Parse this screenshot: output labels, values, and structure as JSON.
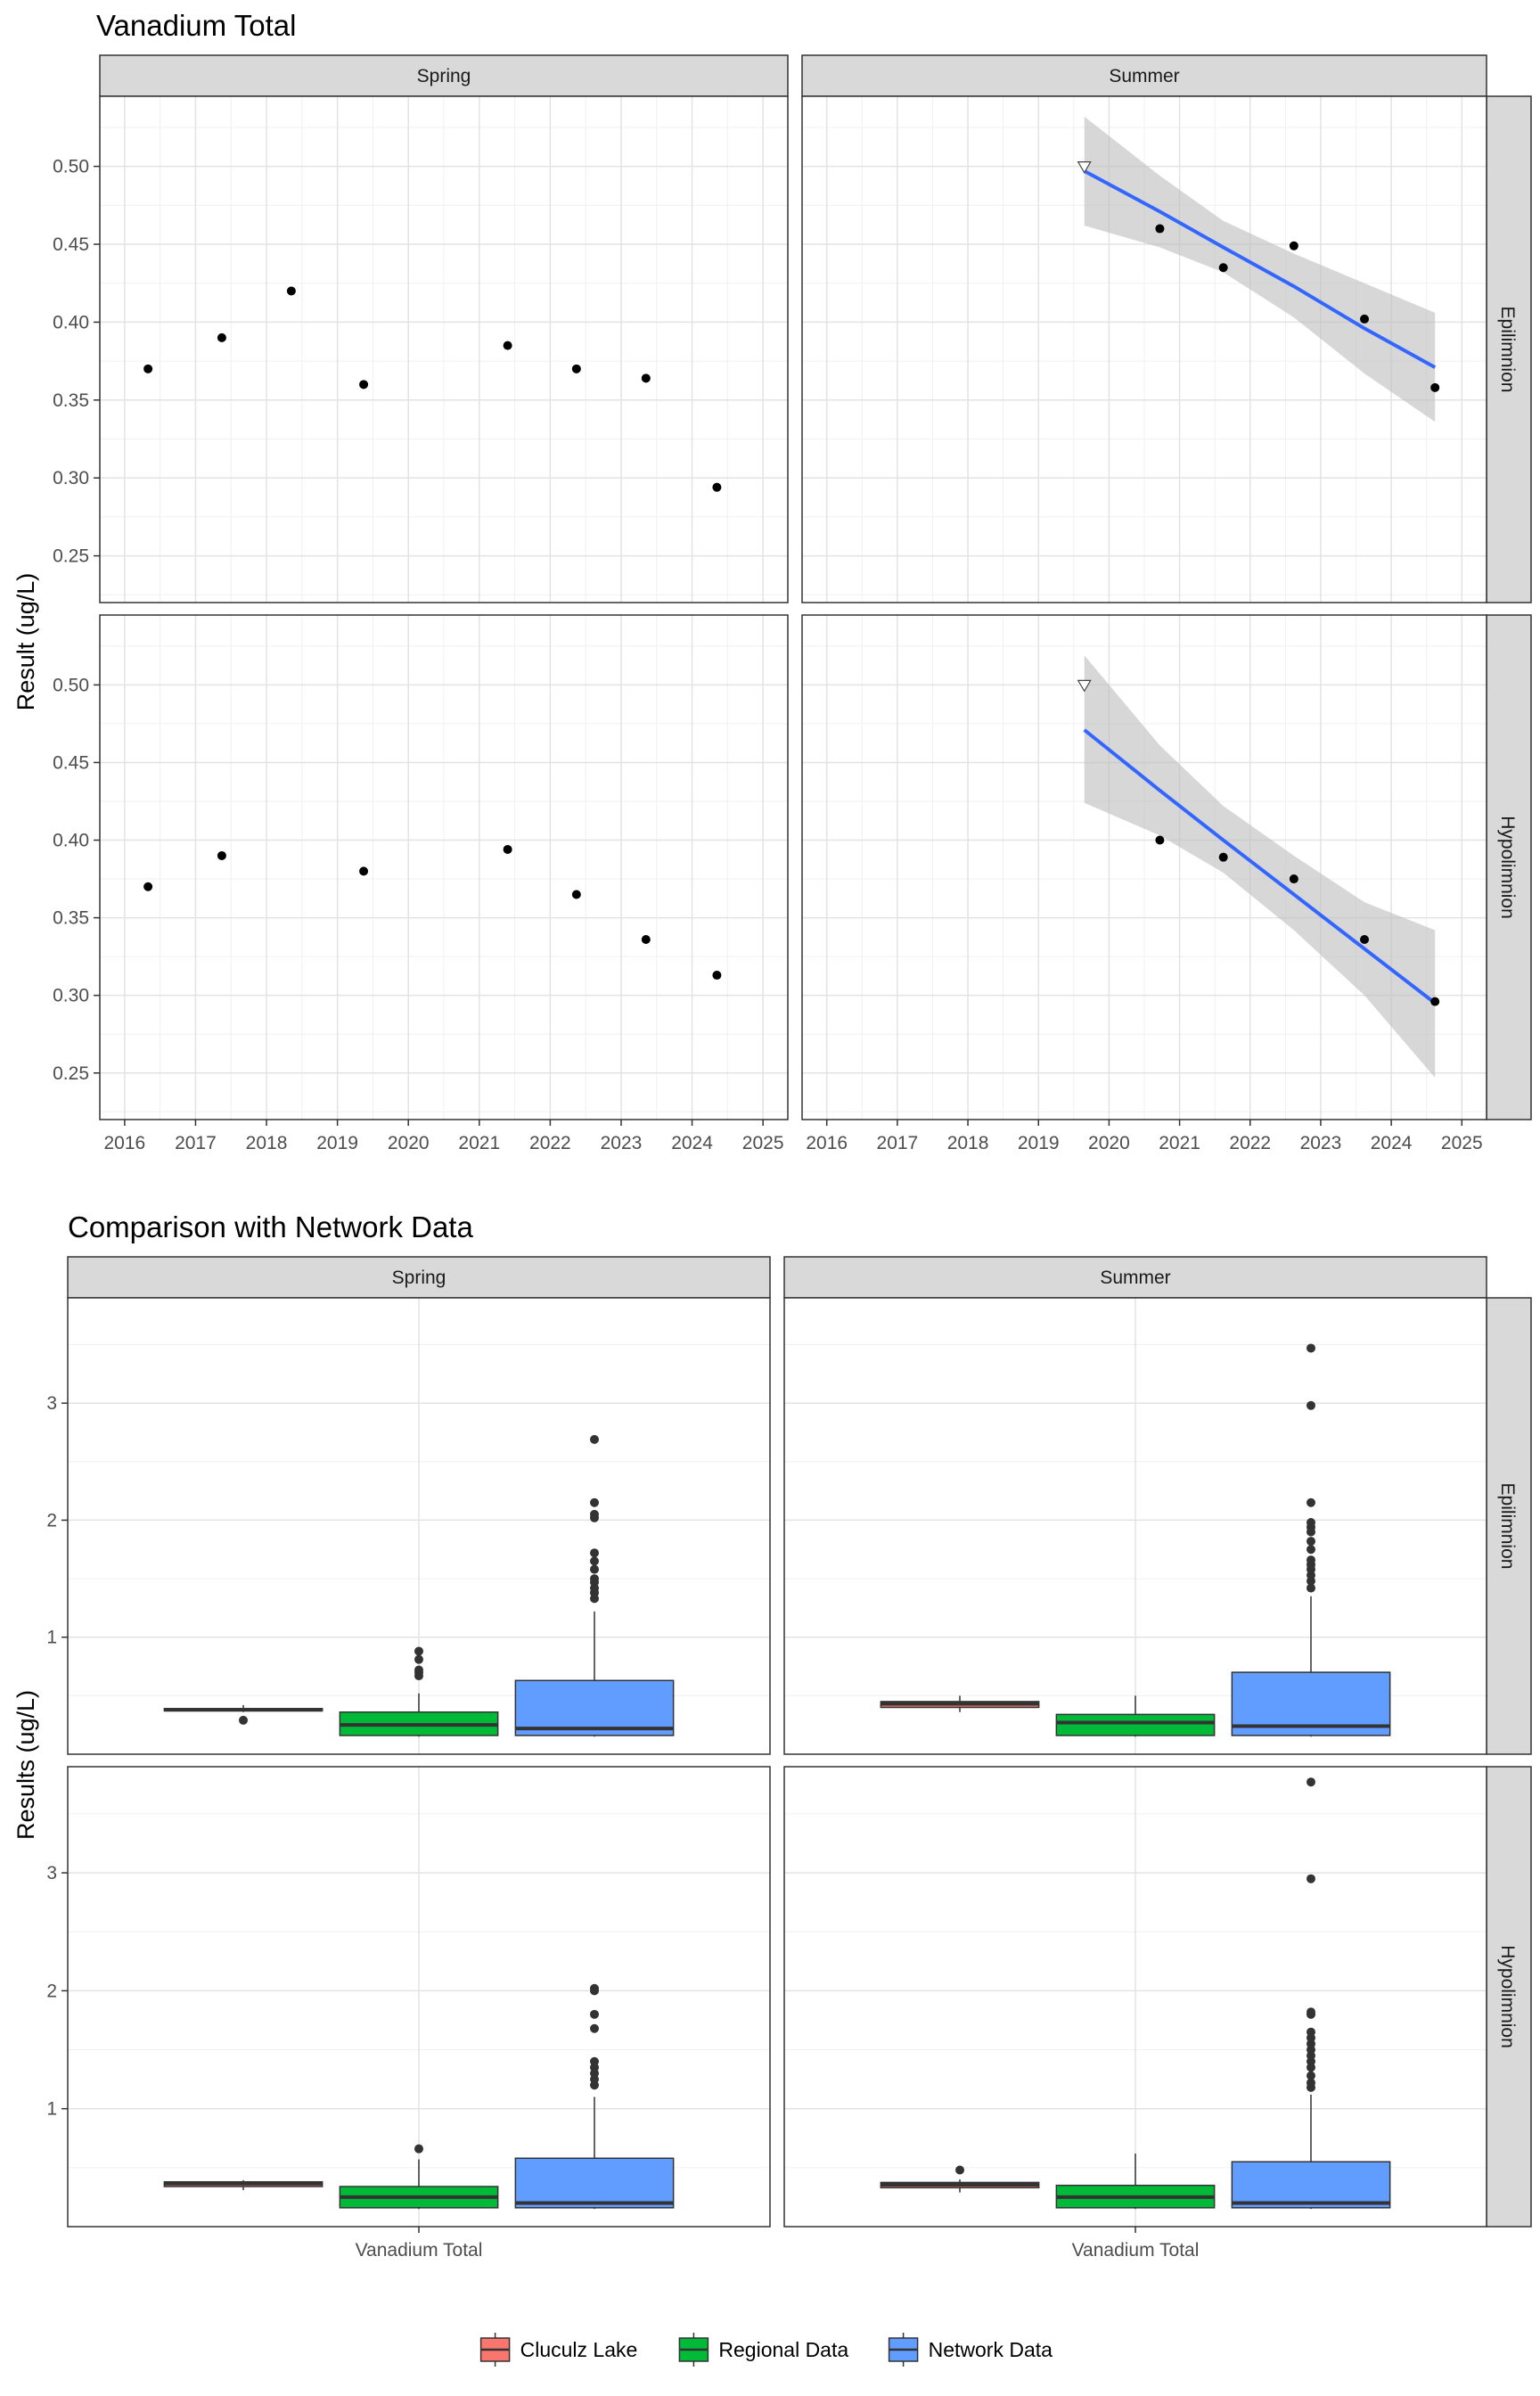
{
  "chart_data": [
    {
      "type": "scatter",
      "title": "Vanadium Total",
      "ylabel": "Result (ug/L)",
      "xlabel": "",
      "columns": [
        "Spring",
        "Summer"
      ],
      "rows": [
        "Epilimnion",
        "Hypolimnion"
      ],
      "x_ticks": [
        "2016",
        "2017",
        "2018",
        "2019",
        "2020",
        "2021",
        "2022",
        "2023",
        "2024",
        "2025"
      ],
      "y_ticks": [
        "0.25",
        "0.30",
        "0.35",
        "0.40",
        "0.45",
        "0.50"
      ],
      "xlim": [
        2015.65,
        2025.35
      ],
      "ylim": [
        0.22,
        0.545
      ],
      "grid": true,
      "colors": {
        "points": "#000000",
        "trend_line": "#3366ff",
        "ribbon": "#bdbdbd",
        "strip_fill": "#d9d9d9"
      },
      "panels": [
        {
          "column": "Spring",
          "row": "Epilimnion",
          "points": [
            {
              "x": 2016.33,
              "y": 0.37
            },
            {
              "x": 2017.37,
              "y": 0.39
            },
            {
              "x": 2018.35,
              "y": 0.42
            },
            {
              "x": 2019.37,
              "y": 0.36
            },
            {
              "x": 2021.4,
              "y": 0.385
            },
            {
              "x": 2022.37,
              "y": 0.37
            },
            {
              "x": 2023.35,
              "y": 0.364
            },
            {
              "x": 2024.35,
              "y": 0.294
            }
          ]
        },
        {
          "column": "Summer",
          "row": "Epilimnion",
          "points": [
            {
              "x": 2020.72,
              "y": 0.46
            },
            {
              "x": 2021.62,
              "y": 0.435
            },
            {
              "x": 2022.62,
              "y": 0.449
            },
            {
              "x": 2023.62,
              "y": 0.402
            },
            {
              "x": 2024.62,
              "y": 0.358
            }
          ],
          "censored_points": [
            {
              "x": 2019.65,
              "y": 0.5
            }
          ],
          "trend": {
            "x": [
              2019.65,
              2020.72,
              2021.62,
              2022.62,
              2023.62,
              2024.62
            ],
            "fit": [
              0.497,
              0.471,
              0.448,
              0.423,
              0.396,
              0.371
            ],
            "lower": [
              0.462,
              0.448,
              0.432,
              0.403,
              0.367,
              0.336
            ],
            "upper": [
              0.532,
              0.494,
              0.465,
              0.444,
              0.425,
              0.406
            ]
          }
        },
        {
          "column": "Spring",
          "row": "Hypolimnion",
          "points": [
            {
              "x": 2016.33,
              "y": 0.37
            },
            {
              "x": 2017.37,
              "y": 0.39
            },
            {
              "x": 2019.37,
              "y": 0.38
            },
            {
              "x": 2021.4,
              "y": 0.394
            },
            {
              "x": 2022.37,
              "y": 0.365
            },
            {
              "x": 2023.35,
              "y": 0.336
            },
            {
              "x": 2024.35,
              "y": 0.313
            }
          ]
        },
        {
          "column": "Summer",
          "row": "Hypolimnion",
          "points": [
            {
              "x": 2020.72,
              "y": 0.4
            },
            {
              "x": 2021.62,
              "y": 0.389
            },
            {
              "x": 2022.62,
              "y": 0.375
            },
            {
              "x": 2023.62,
              "y": 0.336
            },
            {
              "x": 2024.62,
              "y": 0.296
            }
          ],
          "censored_points": [
            {
              "x": 2019.65,
              "y": 0.5
            }
          ],
          "trend": {
            "x": [
              2019.65,
              2020.72,
              2021.62,
              2022.62,
              2023.62,
              2024.62
            ],
            "fit": [
              0.471,
              0.432,
              0.4,
              0.365,
              0.33,
              0.295
            ],
            "lower": [
              0.424,
              0.403,
              0.379,
              0.342,
              0.3,
              0.247
            ],
            "upper": [
              0.519,
              0.461,
              0.422,
              0.39,
              0.36,
              0.342
            ]
          }
        }
      ]
    },
    {
      "type": "box",
      "title": "Comparison with Network Data",
      "ylabel": "Results (ug/L)",
      "xlabel": "",
      "columns": [
        "Spring",
        "Summer"
      ],
      "rows": [
        "Epilimnion",
        "Hypolimnion"
      ],
      "category": "Vanadium Total",
      "y_ticks": [
        "1",
        "2",
        "3"
      ],
      "ylim": [
        0.0,
        3.9
      ],
      "grid": true,
      "legend": {
        "position": "bottom",
        "items": [
          {
            "label": "Cluculz Lake",
            "color": "#f8766d"
          },
          {
            "label": "Regional Data",
            "color": "#00ba38"
          },
          {
            "label": "Network Data",
            "color": "#619cff"
          }
        ]
      },
      "panels": [
        {
          "column": "Spring",
          "row": "Epilimnion",
          "boxes": [
            {
              "group": "Cluculz Lake",
              "min": 0.36,
              "q1": 0.37,
              "median": 0.38,
              "q3": 0.39,
              "max": 0.42,
              "outliers": [
                0.29
              ]
            },
            {
              "group": "Regional Data",
              "min": 0.15,
              "q1": 0.16,
              "median": 0.25,
              "q3": 0.36,
              "max": 0.52,
              "outliers": [
                0.67,
                0.7,
                0.72,
                0.81,
                0.88
              ]
            },
            {
              "group": "Network Data",
              "min": 0.15,
              "q1": 0.16,
              "median": 0.22,
              "q3": 0.63,
              "max": 1.22,
              "outliers": [
                1.33,
                1.38,
                1.42,
                1.47,
                1.5,
                1.58,
                1.65,
                1.72,
                2.02,
                2.05,
                2.15,
                2.69
              ]
            }
          ]
        },
        {
          "column": "Summer",
          "row": "Epilimnion",
          "boxes": [
            {
              "group": "Cluculz Lake",
              "min": 0.36,
              "q1": 0.4,
              "median": 0.43,
              "q3": 0.45,
              "max": 0.5,
              "outliers": []
            },
            {
              "group": "Regional Data",
              "min": 0.15,
              "q1": 0.16,
              "median": 0.27,
              "q3": 0.34,
              "max": 0.5,
              "outliers": []
            },
            {
              "group": "Network Data",
              "min": 0.15,
              "q1": 0.16,
              "median": 0.24,
              "q3": 0.7,
              "max": 1.35,
              "outliers": [
                1.42,
                1.48,
                1.53,
                1.58,
                1.62,
                1.66,
                1.75,
                1.82,
                1.9,
                1.94,
                1.98,
                2.15,
                2.98,
                3.47
              ]
            }
          ]
        },
        {
          "column": "Spring",
          "row": "Hypolimnion",
          "boxes": [
            {
              "group": "Cluculz Lake",
              "min": 0.31,
              "q1": 0.34,
              "median": 0.365,
              "q3": 0.38,
              "max": 0.394,
              "outliers": []
            },
            {
              "group": "Regional Data",
              "min": 0.15,
              "q1": 0.16,
              "median": 0.25,
              "q3": 0.34,
              "max": 0.57,
              "outliers": [
                0.66
              ]
            },
            {
              "group": "Network Data",
              "min": 0.15,
              "q1": 0.16,
              "median": 0.2,
              "q3": 0.58,
              "max": 1.1,
              "outliers": [
                1.2,
                1.25,
                1.3,
                1.35,
                1.4,
                1.68,
                1.8,
                2.0,
                2.02
              ]
            }
          ]
        },
        {
          "column": "Summer",
          "row": "Hypolimnion",
          "boxes": [
            {
              "group": "Cluculz Lake",
              "min": 0.29,
              "q1": 0.33,
              "median": 0.355,
              "q3": 0.375,
              "max": 0.4,
              "outliers": [
                0.48
              ]
            },
            {
              "group": "Regional Data",
              "min": 0.15,
              "q1": 0.16,
              "median": 0.25,
              "q3": 0.35,
              "max": 0.62,
              "outliers": []
            },
            {
              "group": "Network Data",
              "min": 0.15,
              "q1": 0.16,
              "median": 0.2,
              "q3": 0.55,
              "max": 1.12,
              "outliers": [
                1.18,
                1.22,
                1.28,
                1.35,
                1.4,
                1.45,
                1.5,
                1.55,
                1.6,
                1.65,
                1.8,
                1.82,
                2.95,
                3.77
              ]
            }
          ]
        }
      ]
    }
  ]
}
